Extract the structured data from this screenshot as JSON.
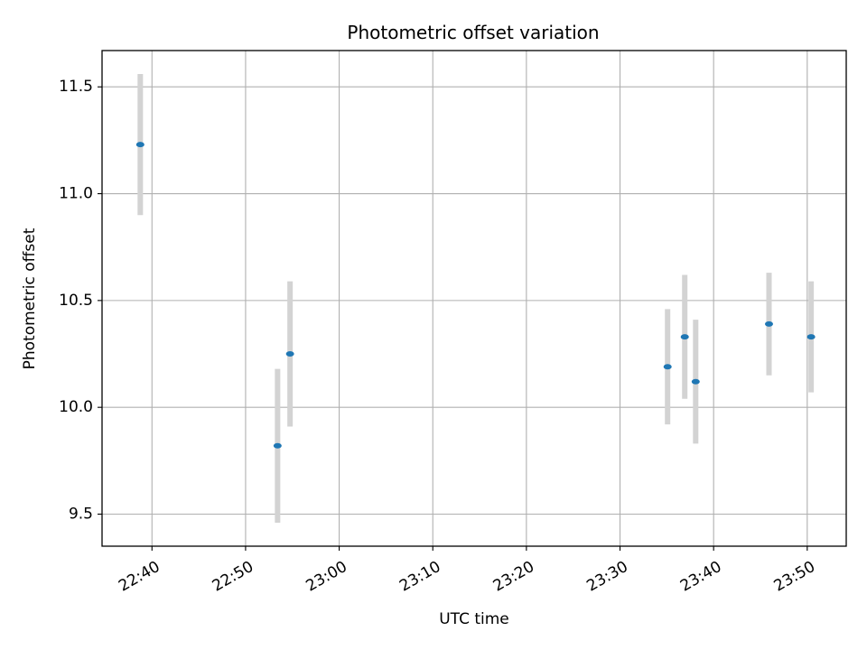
{
  "chart_data": {
    "type": "scatter",
    "title": "Photometric offset variation",
    "xlabel": "UTC time",
    "ylabel": "Photometric offset",
    "xlim": [
      "22:34:40",
      "23:54:10"
    ],
    "ylim": [
      9.35,
      11.67
    ],
    "grid": true,
    "x_ticks": [
      "22:40",
      "22:50",
      "23:00",
      "23:10",
      "23:20",
      "23:30",
      "23:40",
      "23:50"
    ],
    "y_ticks": [
      9.5,
      10.0,
      10.5,
      11.0,
      11.5
    ],
    "series": [
      {
        "points": [
          {
            "x": "22:38:45",
            "y": 11.23,
            "err": 0.33
          },
          {
            "x": "22:53:25",
            "y": 9.82,
            "err": 0.36
          },
          {
            "x": "22:54:45",
            "y": 10.25,
            "err": 0.34
          },
          {
            "x": "23:35:05",
            "y": 10.19,
            "err": 0.27
          },
          {
            "x": "23:36:55",
            "y": 10.33,
            "err": 0.29
          },
          {
            "x": "23:38:05",
            "y": 10.12,
            "err": 0.29
          },
          {
            "x": "23:45:55",
            "y": 10.39,
            "err": 0.24
          },
          {
            "x": "23:50:25",
            "y": 10.33,
            "err": 0.26
          }
        ]
      }
    ],
    "colors": {
      "point": "#1f77b4",
      "errorbar": "#d3d3d3",
      "grid": "#b0b0b0",
      "axes": "#000000"
    }
  }
}
